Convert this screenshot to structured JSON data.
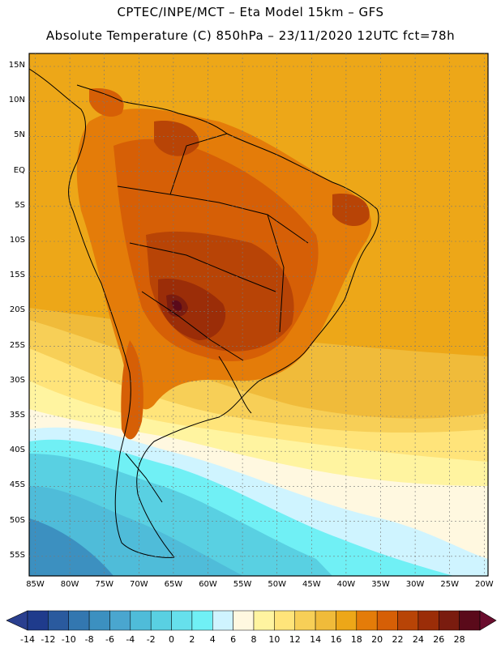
{
  "header": {
    "line1": "CPTEC/INPE/MCT –  Eta Model 15km – GFS",
    "line2": "Absolute Temperature (C) 850hPa – 23/11/2020 12UTC fct=78h"
  },
  "map": {
    "lat_labels": [
      "15N",
      "10N",
      "5N",
      "EQ",
      "5S",
      "10S",
      "15S",
      "20S",
      "25S",
      "30S",
      "35S",
      "40S",
      "45S",
      "50S",
      "55S"
    ],
    "lon_labels": [
      "85W",
      "80W",
      "75W",
      "70W",
      "65W",
      "60W",
      "55W",
      "50W",
      "45W",
      "40W",
      "35W",
      "30W",
      "25W",
      "20W"
    ]
  },
  "colorbar": {
    "labels": [
      "-14",
      "-12",
      "-10",
      "-8",
      "-6",
      "-4",
      "-2",
      "0",
      "2",
      "4",
      "6",
      "8",
      "10",
      "12",
      "14",
      "16",
      "18",
      "20",
      "22",
      "24",
      "26",
      "28"
    ],
    "colors": [
      "#1f3b8c",
      "#2a5a9e",
      "#3377b0",
      "#3c90c0",
      "#4aa6cf",
      "#4fbcd9",
      "#59d0e2",
      "#66e0ec",
      "#70f0f5",
      "#cff4ff",
      "#fff8e0",
      "#fff4a0",
      "#ffe47a",
      "#f7cf57",
      "#f0bb3a",
      "#eda718",
      "#e47c09",
      "#d65f06",
      "#b84406",
      "#9b2d08",
      "#7a1c0f",
      "#5a0a1a"
    ],
    "left_tip": "#2a3f8f",
    "right_tip": "#6a0d2e"
  }
}
